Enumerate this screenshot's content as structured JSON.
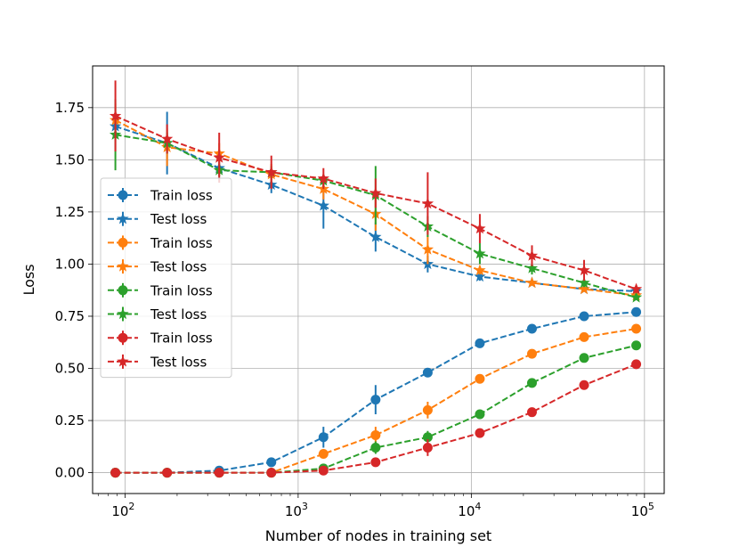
{
  "chart_data": {
    "type": "line",
    "xlabel": "Number of nodes in training set",
    "ylabel": "Loss",
    "xscale": "log",
    "xlim": [
      65,
      130000
    ],
    "ylim": [
      -0.1,
      1.95
    ],
    "grid": true,
    "legend_position": "center-left",
    "x": [
      88,
      175,
      350,
      700,
      1400,
      2800,
      5600,
      11200,
      22400,
      44800,
      89600
    ],
    "x_ticks": [
      {
        "value": 100,
        "base": "10",
        "exp": "2"
      },
      {
        "value": 1000,
        "base": "10",
        "exp": "3"
      },
      {
        "value": 10000,
        "base": "10",
        "exp": "4"
      },
      {
        "value": 100000,
        "base": "10",
        "exp": "5"
      }
    ],
    "y_ticks": [
      {
        "value": 0.0,
        "label": "0.00"
      },
      {
        "value": 0.25,
        "label": "0.25"
      },
      {
        "value": 0.5,
        "label": "0.50"
      },
      {
        "value": 0.75,
        "label": "0.75"
      },
      {
        "value": 1.0,
        "label": "1.00"
      },
      {
        "value": 1.25,
        "label": "1.25"
      },
      {
        "value": 1.5,
        "label": "1.50"
      },
      {
        "value": 1.75,
        "label": "1.75"
      }
    ],
    "series": [
      {
        "name": "Train loss",
        "color": "#1f77b4",
        "marker": "circle",
        "values": [
          0.0,
          0.0,
          0.01,
          0.05,
          0.17,
          0.35,
          0.48,
          0.62,
          0.69,
          0.75,
          0.77
        ],
        "errors": [
          0.0,
          0.0,
          0.01,
          0.01,
          0.05,
          0.07,
          0.02,
          0.01,
          0.01,
          0.01,
          0.01
        ]
      },
      {
        "name": "Test loss",
        "color": "#1f77b4",
        "marker": "star",
        "values": [
          1.66,
          1.58,
          1.46,
          1.38,
          1.28,
          1.13,
          1.0,
          0.94,
          0.91,
          0.88,
          0.87
        ],
        "errors": [
          0.05,
          0.15,
          0.03,
          0.04,
          0.11,
          0.07,
          0.04,
          0.02,
          0.01,
          0.01,
          0.01
        ]
      },
      {
        "name": "Train loss",
        "color": "#ff7f0e",
        "marker": "circle",
        "values": [
          0.0,
          0.0,
          0.0,
          0.0,
          0.09,
          0.18,
          0.3,
          0.45,
          0.57,
          0.65,
          0.69
        ],
        "errors": [
          0.0,
          0.0,
          0.0,
          0.0,
          0.02,
          0.04,
          0.04,
          0.01,
          0.01,
          0.01,
          0.01
        ]
      },
      {
        "name": "Test loss",
        "color": "#ff7f0e",
        "marker": "star",
        "values": [
          1.69,
          1.56,
          1.53,
          1.43,
          1.36,
          1.24,
          1.07,
          0.97,
          0.91,
          0.88,
          0.85
        ],
        "errors": [
          0.08,
          0.09,
          0.05,
          0.05,
          0.05,
          0.08,
          0.07,
          0.02,
          0.01,
          0.01,
          0.01
        ]
      },
      {
        "name": "Train loss",
        "color": "#2ca02c",
        "marker": "circle",
        "values": [
          0.0,
          0.0,
          0.0,
          0.0,
          0.02,
          0.12,
          0.17,
          0.28,
          0.43,
          0.55,
          0.61
        ],
        "errors": [
          0.0,
          0.0,
          0.0,
          0.0,
          0.01,
          0.03,
          0.03,
          0.02,
          0.01,
          0.01,
          0.01
        ]
      },
      {
        "name": "Test loss",
        "color": "#2ca02c",
        "marker": "star",
        "values": [
          1.62,
          1.58,
          1.45,
          1.44,
          1.4,
          1.33,
          1.18,
          1.05,
          0.98,
          0.91,
          0.84
        ],
        "errors": [
          0.17,
          0.05,
          0.03,
          0.03,
          0.03,
          0.14,
          0.05,
          0.05,
          0.03,
          0.02,
          0.01
        ]
      },
      {
        "name": "Train loss",
        "color": "#d62728",
        "marker": "circle",
        "values": [
          0.0,
          0.0,
          0.0,
          0.0,
          0.01,
          0.05,
          0.12,
          0.19,
          0.29,
          0.42,
          0.52
        ],
        "errors": [
          0.0,
          0.0,
          0.0,
          0.0,
          0.01,
          0.02,
          0.04,
          0.02,
          0.01,
          0.01,
          0.01
        ]
      },
      {
        "name": "Test loss",
        "color": "#d62728",
        "marker": "star",
        "values": [
          1.71,
          1.6,
          1.51,
          1.44,
          1.41,
          1.34,
          1.29,
          1.17,
          1.04,
          0.97,
          0.88
        ],
        "errors": [
          0.17,
          0.07,
          0.12,
          0.08,
          0.05,
          0.07,
          0.15,
          0.07,
          0.05,
          0.05,
          0.02
        ]
      }
    ]
  }
}
